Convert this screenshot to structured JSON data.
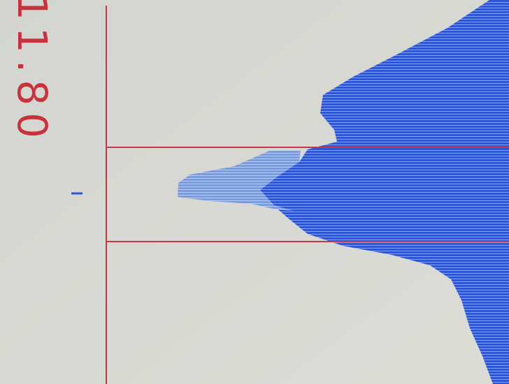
{
  "display": {
    "reading": "11.80"
  }
}
